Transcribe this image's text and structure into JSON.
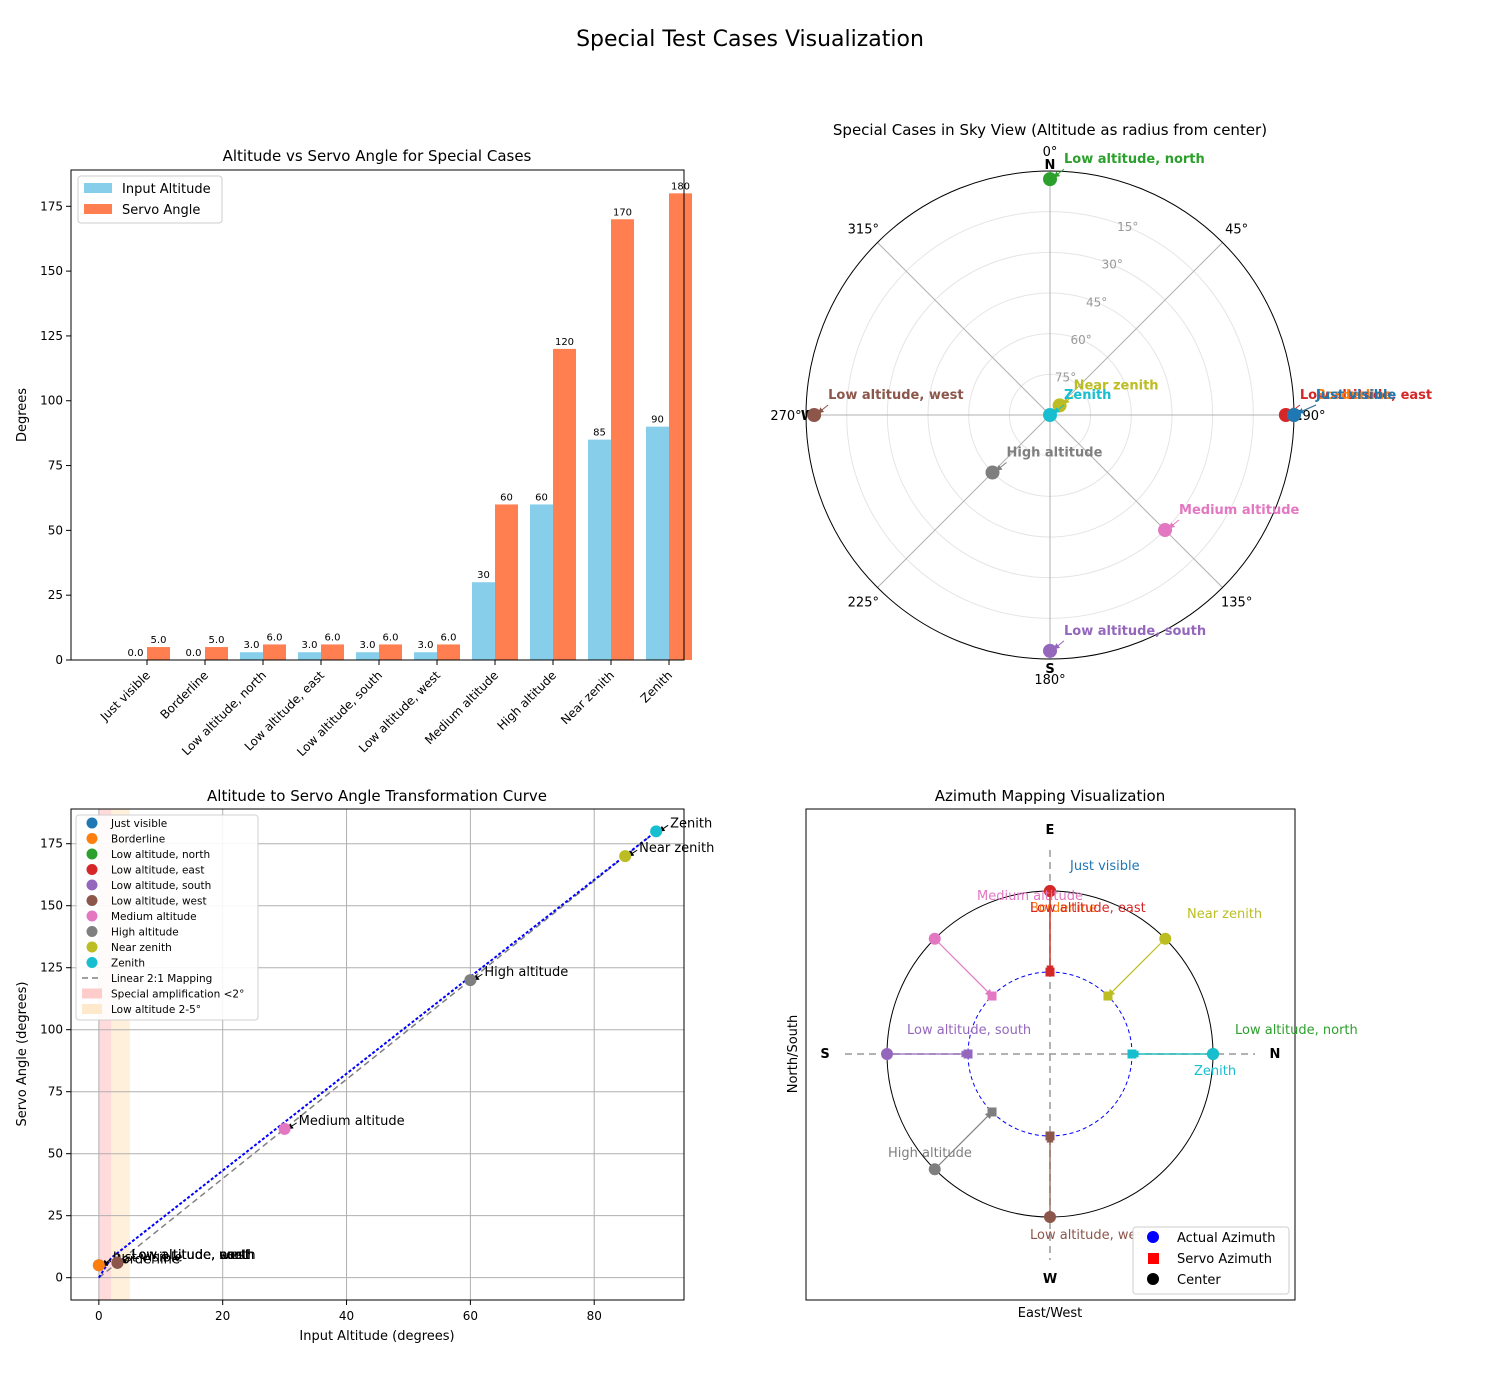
{
  "figure": {
    "title": "Special Test Cases Visualization"
  },
  "cases": [
    "Just visible",
    "Borderline",
    "Low altitude, north",
    "Low altitude, east",
    "Low altitude, south",
    "Low altitude, west",
    "Medium altitude",
    "High altitude",
    "Near zenith",
    "Zenith"
  ],
  "case_colors": [
    "#1f77b4",
    "#ff7f0e",
    "#2ca02c",
    "#d62728",
    "#9467bd",
    "#8c564b",
    "#e377c2",
    "#7f7f7f",
    "#bcbd22",
    "#17becf"
  ],
  "chart_data": [
    {
      "type": "bar",
      "title": "Altitude vs Servo Angle for Special Cases",
      "xlabel": "",
      "ylabel": "Degrees",
      "categories": [
        "Just visible",
        "Borderline",
        "Low altitude, north",
        "Low altitude, east",
        "Low altitude, south",
        "Low altitude, west",
        "Medium altitude",
        "High altitude",
        "Near zenith",
        "Zenith"
      ],
      "series": [
        {
          "name": "Input Altitude",
          "color": "#87ceeb",
          "values": [
            0.0,
            0.0,
            3.0,
            3.0,
            3.0,
            3.0,
            30,
            60,
            85,
            90
          ],
          "labels": [
            "0.0",
            "0.0",
            "3.0",
            "3.0",
            "3.0",
            "3.0",
            "30",
            "60",
            "85",
            "90"
          ]
        },
        {
          "name": "Servo Angle",
          "color": "#ff7f50",
          "values": [
            5.0,
            5.0,
            6.0,
            6.0,
            6.0,
            6.0,
            60,
            120,
            170,
            180
          ],
          "labels": [
            "5.0",
            "5.0",
            "6.0",
            "6.0",
            "6.0",
            "6.0",
            "60",
            "120",
            "170",
            "180"
          ]
        }
      ],
      "ylim": [
        0,
        189
      ],
      "yticks": [
        0,
        25,
        50,
        75,
        100,
        125,
        150,
        175
      ],
      "legend": "top-left"
    },
    {
      "type": "scatter",
      "subtype": "polar",
      "title": "Special Cases in Sky View (Altitude as radius from center)",
      "points": [
        {
          "label": "Low altitude, north",
          "azimuth": 0,
          "altitude": 3
        },
        {
          "label": "Low altitude, east",
          "azimuth": 90,
          "altitude": 3
        },
        {
          "label": "Borderline",
          "azimuth": 90,
          "altitude": 0
        },
        {
          "label": "Just visible",
          "azimuth": 90,
          "altitude": 0
        },
        {
          "label": "Low altitude, south",
          "azimuth": 180,
          "altitude": 3
        },
        {
          "label": "Low altitude, west",
          "azimuth": 270,
          "altitude": 3
        },
        {
          "label": "Medium altitude",
          "azimuth": 135,
          "altitude": 30
        },
        {
          "label": "High altitude",
          "azimuth": 225,
          "altitude": 60
        },
        {
          "label": "Near zenith",
          "azimuth": 45,
          "altitude": 85
        },
        {
          "label": "Zenith",
          "azimuth": 0,
          "altitude": 90
        }
      ],
      "angle_ticks": [
        "0°",
        "45°",
        "90°",
        "135°",
        "180°",
        "225°",
        "270°",
        "315°"
      ],
      "cardinals": [
        "N",
        "E",
        "S",
        "W"
      ],
      "radius_ticks": [
        15,
        30,
        45,
        60,
        75
      ],
      "radius_tick_labels": [
        "15°",
        "30°",
        "45°",
        "60°",
        "75°"
      ]
    },
    {
      "type": "scatter",
      "title": "Altitude to Servo Angle Transformation Curve",
      "xlabel": "Input Altitude (degrees)",
      "ylabel": "Servo Angle (degrees)",
      "points": [
        {
          "label": "Just visible",
          "x": 0,
          "y": 5
        },
        {
          "label": "Borderline",
          "x": 0,
          "y": 5
        },
        {
          "label": "Low altitude, north",
          "x": 3,
          "y": 6
        },
        {
          "label": "Low altitude, east",
          "x": 3,
          "y": 6
        },
        {
          "label": "Low altitude, south",
          "x": 3,
          "y": 6
        },
        {
          "label": "Low altitude, west",
          "x": 3,
          "y": 6
        },
        {
          "label": "Medium altitude",
          "x": 30,
          "y": 60
        },
        {
          "label": "High altitude",
          "x": 60,
          "y": 120
        },
        {
          "label": "Near zenith",
          "x": 85,
          "y": 170
        },
        {
          "label": "Zenith",
          "x": 90,
          "y": 180
        }
      ],
      "mapping_line": {
        "name": "Linear 2:1 Mapping",
        "x": [
          0,
          90
        ],
        "y": [
          0,
          180
        ]
      },
      "curve": {
        "x": [
          0,
          2,
          90
        ],
        "y": [
          0,
          8,
          180
        ],
        "color": "#0000ff"
      },
      "bands": [
        {
          "name": "Special amplification <2°",
          "x0": 0,
          "x1": 2,
          "color": "#ffcccc"
        },
        {
          "name": "Low altitude 2-5°",
          "x0": 2,
          "x1": 5,
          "color": "#ffe9cc"
        }
      ],
      "xlim": [
        -4.5,
        94.5
      ],
      "ylim": [
        -9,
        189
      ],
      "xticks": [
        0,
        20,
        40,
        60,
        80
      ],
      "yticks": [
        0,
        25,
        50,
        75,
        100,
        125,
        150,
        175
      ],
      "grid": true,
      "legend": "top-left"
    },
    {
      "type": "scatter",
      "subtype": "azimuth-mapping",
      "title": "Azimuth Mapping Visualization",
      "xlabel": "East/West",
      "ylabel": "North/South",
      "points": [
        {
          "label": "Just visible",
          "azimuth": 90,
          "servo_azimuth": 90
        },
        {
          "label": "Borderline",
          "azimuth": 90,
          "servo_azimuth": 90
        },
        {
          "label": "Low altitude, north",
          "azimuth": 0,
          "servo_azimuth": 0
        },
        {
          "label": "Low altitude, east",
          "azimuth": 90,
          "servo_azimuth": 90
        },
        {
          "label": "Low altitude, south",
          "azimuth": 180,
          "servo_azimuth": 180
        },
        {
          "label": "Low altitude, west",
          "azimuth": 270,
          "servo_azimuth": 270
        },
        {
          "label": "Medium altitude",
          "azimuth": 135,
          "servo_azimuth": 135
        },
        {
          "label": "High altitude",
          "azimuth": 225,
          "servo_azimuth": 225
        },
        {
          "label": "Near zenith",
          "azimuth": 45,
          "servo_azimuth": 45
        },
        {
          "label": "Zenith",
          "azimuth": 0,
          "servo_azimuth": 0
        }
      ],
      "direction_labels": {
        "E": "E",
        "W": "W",
        "N": "N",
        "S": "S"
      },
      "legend_items": [
        {
          "label": "Actual Azimuth",
          "color": "#0000ff",
          "marker": "circle"
        },
        {
          "label": "Servo Azimuth",
          "color": "#ff0000",
          "marker": "square"
        },
        {
          "label": "Center",
          "color": "#000000",
          "marker": "circle"
        }
      ],
      "legend": "bottom-right"
    }
  ]
}
